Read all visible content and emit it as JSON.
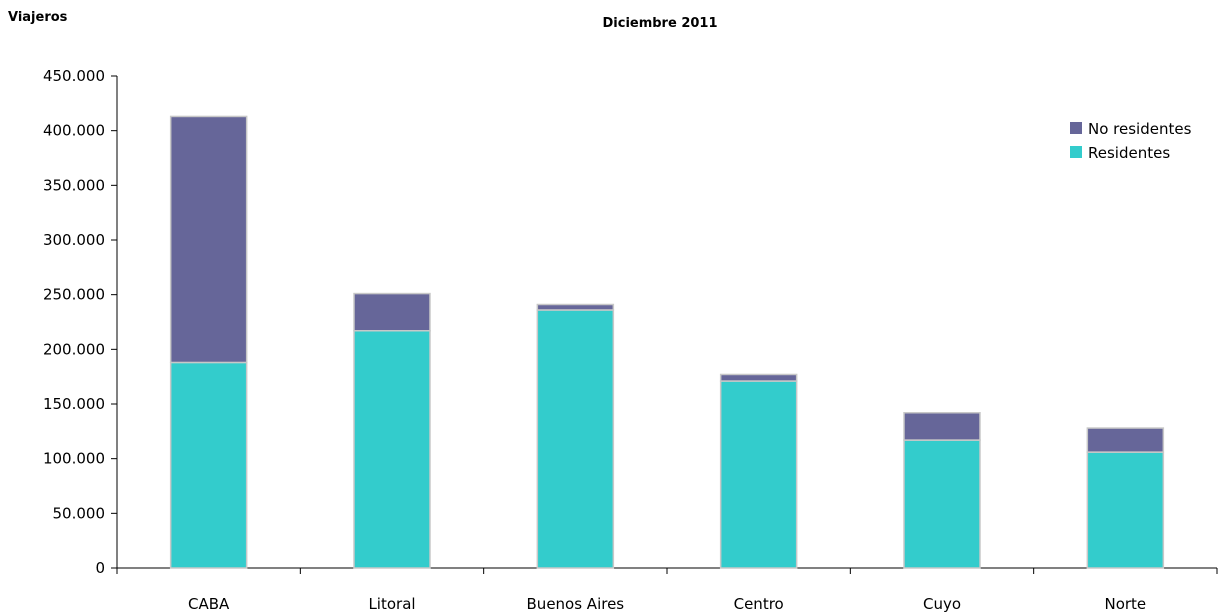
{
  "chart_data": {
    "type": "bar",
    "stacked": true,
    "title": "Diciembre 2011",
    "ylabel": "Viajeros",
    "xlabel": "",
    "categories": [
      "CABA",
      "Litoral",
      "Buenos Aires",
      "Centro",
      "Cuyo",
      "Norte"
    ],
    "series": [
      {
        "name": "Residentes",
        "color": "#33CCCC",
        "values": [
          188000,
          217000,
          236000,
          171000,
          117000,
          106000
        ]
      },
      {
        "name": "No residentes",
        "color": "#666699",
        "values": [
          225000,
          34000,
          5000,
          6000,
          25000,
          22000
        ]
      }
    ],
    "ylim": [
      0,
      450000
    ],
    "yticks": [
      0,
      50000,
      100000,
      150000,
      200000,
      250000,
      300000,
      350000,
      400000,
      450000
    ],
    "ytick_labels": [
      "0",
      "50.000",
      "100.000",
      "150.000",
      "200.000",
      "250.000",
      "300.000",
      "350.000",
      "400.000",
      "450.000"
    ],
    "legend_position": "top-right",
    "grid": false
  }
}
